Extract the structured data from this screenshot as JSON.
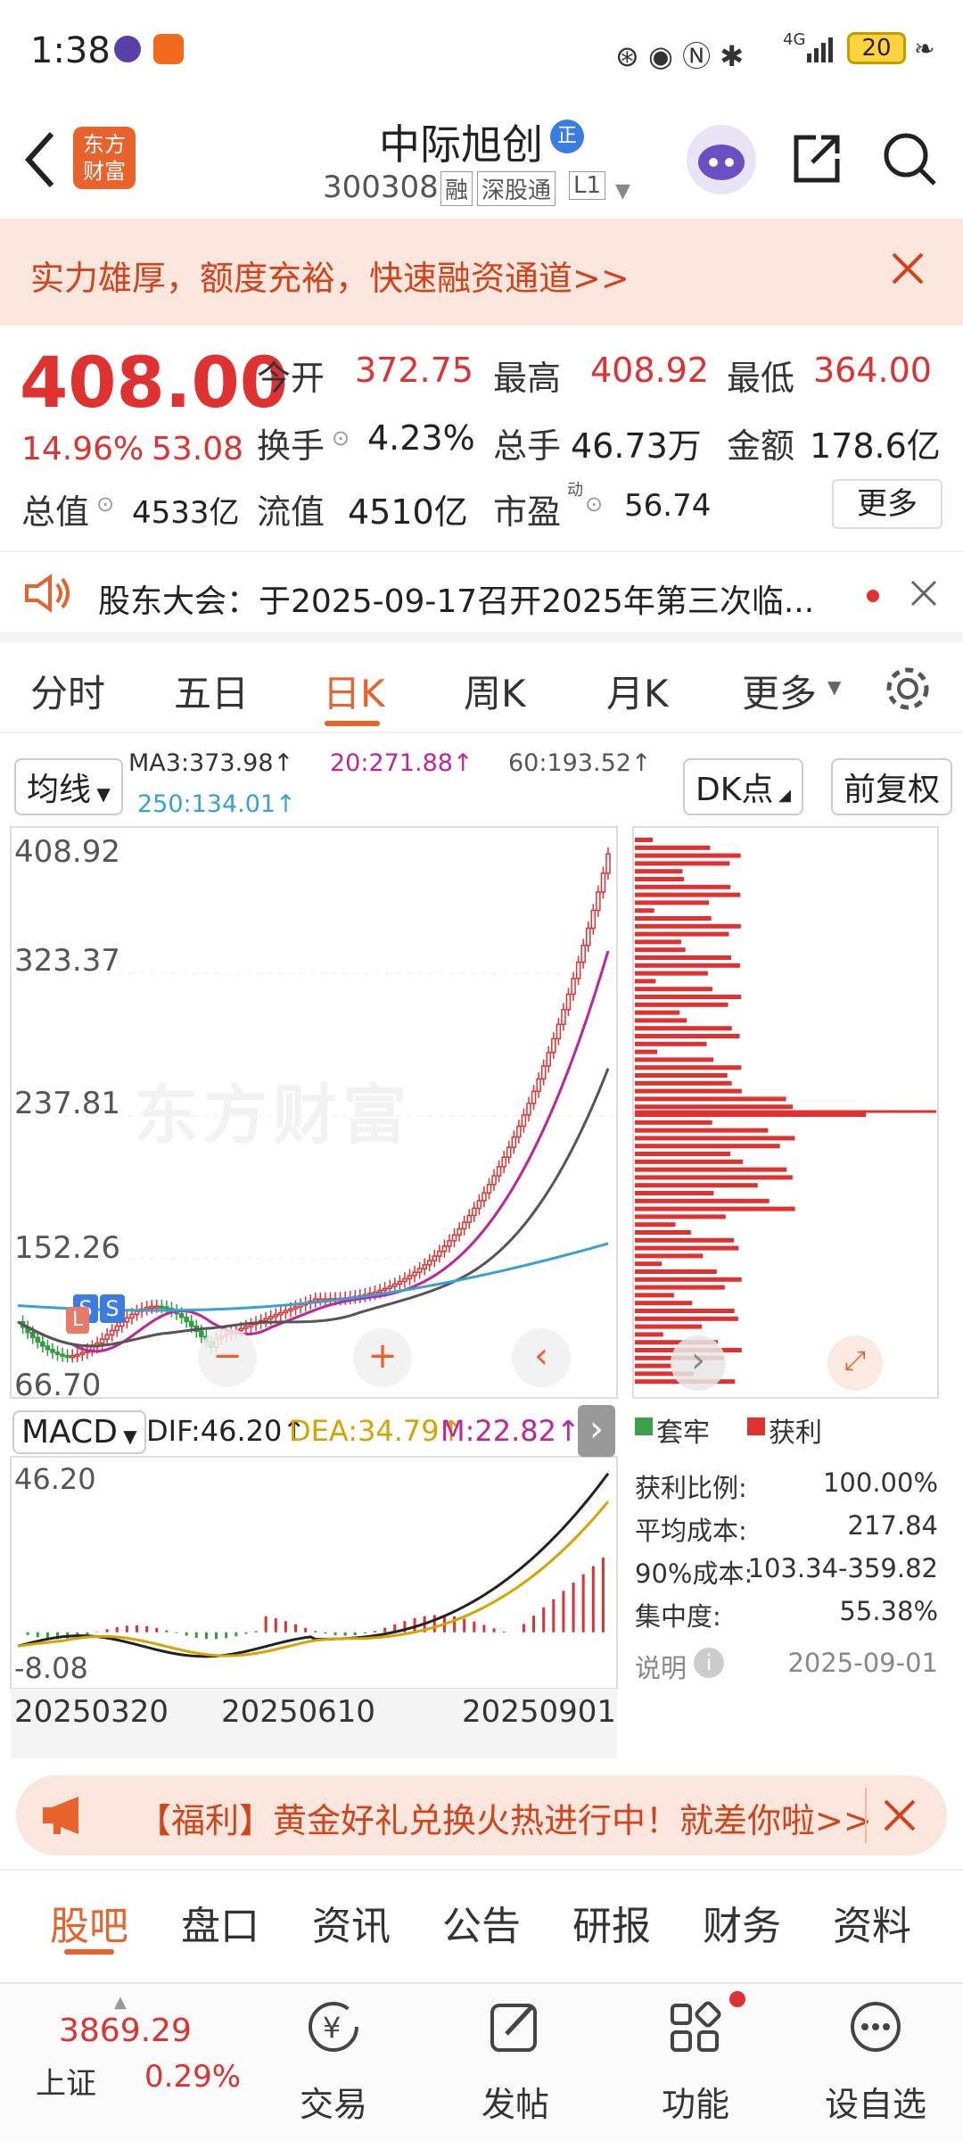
{
  "status": {
    "time": "1:38",
    "battery": "20",
    "network": "4G"
  },
  "nav": {
    "logo_line1": "东方",
    "logo_line2": "财富",
    "stock_name": "中际旭创",
    "badge": "正",
    "code": "300308",
    "tags": [
      "融",
      "深股通",
      "L1"
    ]
  },
  "banner": {
    "text": "实力雄厚，额度充裕，快速融资通道>>"
  },
  "quote": {
    "price": "408.00",
    "change_pct": "14.96%",
    "change": "53.08",
    "open_label": "今开",
    "open": "372.75",
    "high_label": "最高",
    "high": "408.92",
    "low_label": "最低",
    "low": "364.00",
    "turnover_label": "换手",
    "turnover": "4.23%",
    "volume_label": "总手",
    "volume": "46.73万",
    "amount_label": "金额",
    "amount": "178.6亿",
    "mktcap_label": "总值",
    "mktcap": "4533亿",
    "float_label": "流值",
    "float": "4510亿",
    "pe_label": "市盈",
    "pe_sup": "动",
    "pe": "56.74",
    "more_btn": "更多"
  },
  "notice": {
    "text": "股东大会：于2025-09-17召开2025年第三次临..."
  },
  "tabs": [
    "分时",
    "五日",
    "日K",
    "周K",
    "月K",
    "更多"
  ],
  "active_tab": "日K",
  "ma": {
    "selector": "均线",
    "ma3": "MA3:373.98↑",
    "ma20": "20:271.88↑",
    "ma60": "60:193.52↑",
    "ma250": "250:134.01↑",
    "dk_btn": "DK点",
    "fq_btn": "前复权"
  },
  "chart": {
    "price_ticks": [
      "408.92",
      "323.37",
      "237.81",
      "152.26",
      "66.70"
    ],
    "watermark": "东方财富",
    "macd_selector": "MACD",
    "dif": "DIF:46.20↑",
    "dea": "DEA:34.79↑",
    "m": "M:22.82↑",
    "macd_ticks": [
      "46.20",
      "-8.08"
    ],
    "dates": [
      "20250320",
      "20250610",
      "20250901"
    ],
    "s_marker": "S",
    "l_marker": "L"
  },
  "chip_dist": {
    "legend_trapped": "套牢",
    "legend_profit": "获利",
    "rows": [
      {
        "label": "获利比例:",
        "value": "100.00%"
      },
      {
        "label": "平均成本:",
        "value": "217.84"
      },
      {
        "label": "90%成本:",
        "value": "103.34-359.82"
      },
      {
        "label": "集中度:",
        "value": "55.38%"
      }
    ],
    "explain": "说明",
    "date": "2025-09-01"
  },
  "welfare": {
    "text": "【福利】黄金好礼兑换火热进行中！就差你啦>>"
  },
  "bottom_tabs": [
    "股吧",
    "盘口",
    "资讯",
    "公告",
    "研报",
    "财务",
    "资料"
  ],
  "dock": {
    "index_value": "3869.29",
    "index_name": "上证",
    "index_change": "0.29%",
    "items": [
      "交易",
      "发帖",
      "功能",
      "设自选"
    ]
  },
  "colors": {
    "up": "#e03131",
    "down": "#2e9e3e",
    "accent": "#e8622c"
  }
}
